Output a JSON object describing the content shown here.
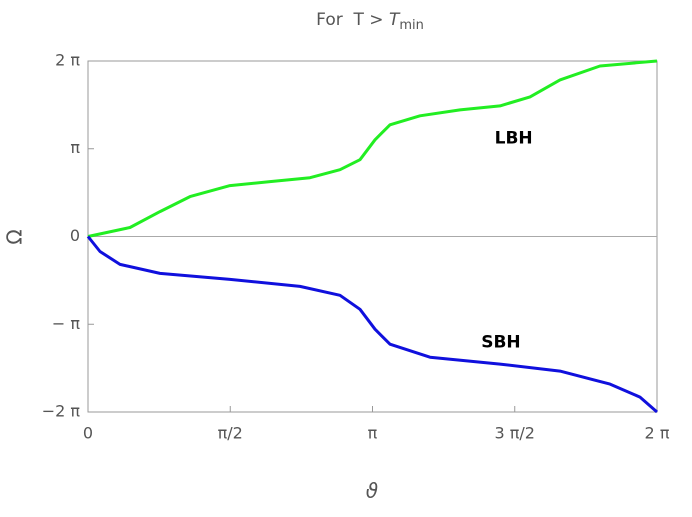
{
  "chart_data": {
    "type": "line",
    "title": "For  T > ",
    "title_italic": "T",
    "title_subscript": "min",
    "x_label": "ϑ",
    "y_label": "Ω",
    "xlim": [
      0,
      6.283185
    ],
    "ylim": [
      -6.283185,
      6.283185
    ],
    "xticks": [
      {
        "value": 0,
        "label": "0"
      },
      {
        "value": 1.570796,
        "label": "π/2"
      },
      {
        "value": 3.141593,
        "label": "π"
      },
      {
        "value": 4.712389,
        "label": "3 π/2"
      },
      {
        "value": 6.283185,
        "label": "2 π"
      }
    ],
    "yticks": [
      {
        "value": -6.283185,
        "label": "−2 π"
      },
      {
        "value": -3.141593,
        "label": "− π"
      },
      {
        "value": 0,
        "label": "0"
      },
      {
        "value": 3.141593,
        "label": "π"
      },
      {
        "value": 6.283185,
        "label": "2 π"
      }
    ],
    "series": [
      {
        "name": "LBH",
        "color": "#22ee22",
        "x": [
          0,
          0.464,
          0.795,
          1.126,
          1.568,
          2.01,
          2.451,
          2.783,
          3.004,
          3.169,
          3.335,
          3.666,
          4.108,
          4.549,
          4.881,
          5.212,
          5.654,
          6.283
        ],
        "values": [
          0,
          0.321,
          0.893,
          1.428,
          1.821,
          1.964,
          2.106,
          2.392,
          2.749,
          3.463,
          3.999,
          4.32,
          4.534,
          4.677,
          4.998,
          5.605,
          6.105,
          6.283
        ]
      },
      {
        "name": "SBH",
        "color": "#1010dd",
        "x": [
          0,
          0.133,
          0.353,
          0.795,
          1.568,
          2.341,
          2.783,
          3.004,
          3.169,
          3.335,
          3.777,
          4.549,
          5.212,
          5.764,
          6.095,
          6.283
        ],
        "values": [
          0,
          -0.536,
          -1.0,
          -1.321,
          -1.535,
          -1.785,
          -2.106,
          -2.606,
          -3.32,
          -3.856,
          -4.32,
          -4.57,
          -4.82,
          -5.284,
          -5.748,
          -6.283
        ]
      }
    ],
    "annotations": [
      {
        "text": "LBH",
        "x": 4.7,
        "y": 3.5
      },
      {
        "text": "SBH",
        "x": 4.56,
        "y": -3.8
      }
    ]
  }
}
